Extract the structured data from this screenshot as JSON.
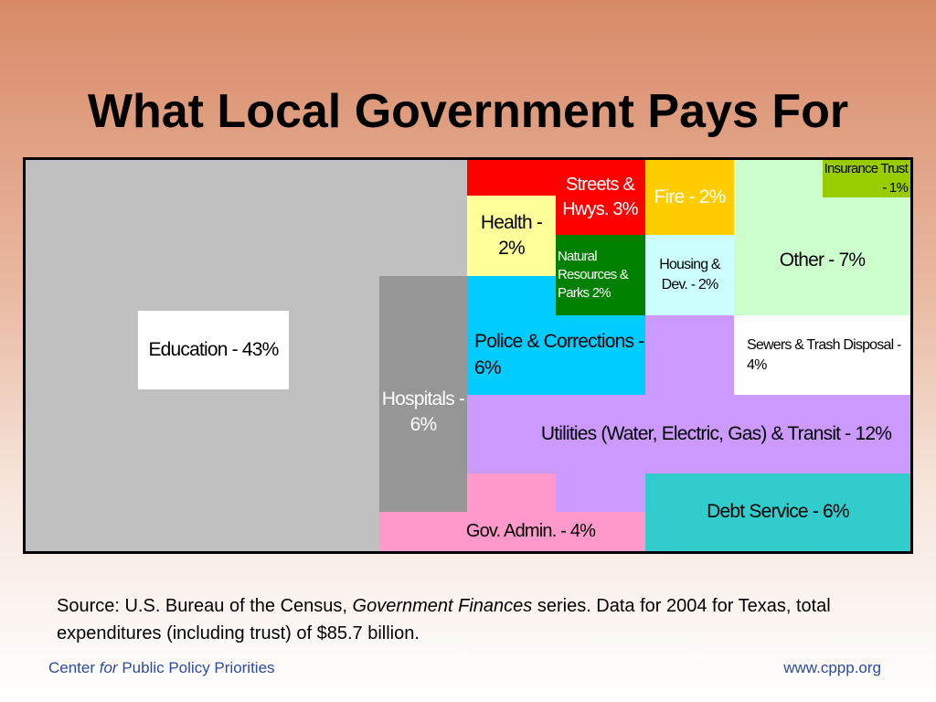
{
  "title": "What Local Government Pays For",
  "chart_data": {
    "type": "treemap",
    "unit": "%",
    "items": [
      {
        "label": "Education - 43%",
        "value": 43,
        "color": "#c0c0c0"
      },
      {
        "label": "Hospitals - 6%",
        "value": 6,
        "color": "#969696"
      },
      {
        "label": "Gov. Admin. - 4%",
        "value": 4,
        "color": "#ff99cc"
      },
      {
        "label": "Streets & Hwys. 3%",
        "value": 3,
        "color": "#ff0000"
      },
      {
        "label": "Health - 2%",
        "value": 2,
        "color": "#ffff99"
      },
      {
        "label": "Police & Corrections - 6%",
        "value": 6,
        "color": "#00ccff"
      },
      {
        "label": "Natural Resources & Parks 2%",
        "value": 2,
        "color": "#008000"
      },
      {
        "label": "Fire - 2%",
        "value": 2,
        "color": "#ffcc00"
      },
      {
        "label": "Housing & Dev. - 2%",
        "value": 2,
        "color": "#ccffff"
      },
      {
        "label": "Insurance Trust - 1%",
        "value": 1,
        "color": "#99cc00"
      },
      {
        "label": "Other - 7%",
        "value": 7,
        "color": "#ccffcc"
      },
      {
        "label": "Sewers & Trash Disposal - 4%",
        "value": 4,
        "color": "#ffffff"
      },
      {
        "label": "Utilities (Water, Electric, Gas) & Transit - 12%",
        "value": 12,
        "color": "#cc99ff"
      },
      {
        "label": "Debt Service - 6%",
        "value": 6,
        "color": "#33cccc"
      }
    ]
  },
  "source": {
    "prefix": "Source: U.S. Bureau of the Census, ",
    "italic": "Government Finances",
    "suffix": " series. Data for 2004 for Texas, total expenditures (including trust) of $85.7 billion."
  },
  "footer": {
    "org_before": "Center ",
    "org_italic": "for",
    "org_after": " Public Policy Priorities",
    "url": "www.cppp.org"
  }
}
